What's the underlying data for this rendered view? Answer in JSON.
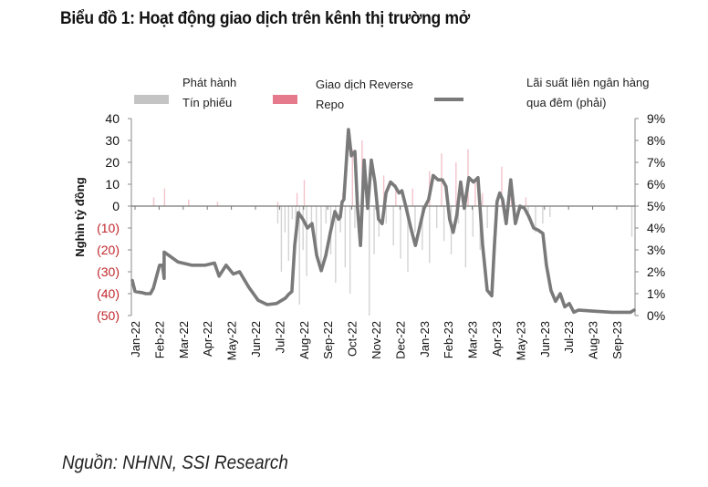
{
  "title": "Biểu đồ 1: Hoạt động giao dịch trên kênh thị trường mở",
  "source": "Nguồn: NHNN, SSI Research",
  "legend": [
    {
      "line1": "Phát hành",
      "line2": "Tín phiếu",
      "color": "#c4c4c4",
      "kind": "bar"
    },
    {
      "line1": "Giao dịch Reverse",
      "line2": "Repo",
      "color": "#e57a8c",
      "kind": "bar"
    },
    {
      "line1": "Lãi suất liên ngân hàng",
      "line2": "qua đêm (phải)",
      "color": "#7a7a7a",
      "kind": "line"
    }
  ],
  "chart_data": {
    "type": "bar+line",
    "title": "Biểu đồ 1: Hoạt động giao dịch trên kênh thị trường mở",
    "ylabel": "Nghìn tỷ đồng",
    "y2label": "",
    "ylim": [
      -50,
      40
    ],
    "y2lim": [
      0,
      9
    ],
    "yticks": [
      "40",
      "30",
      "20",
      "10",
      "0",
      "(10)",
      "(20)",
      "(30)",
      "(40)",
      "(50)"
    ],
    "yticks_values": [
      40,
      30,
      20,
      10,
      0,
      -10,
      -20,
      -30,
      -40,
      -50
    ],
    "y2ticks": [
      "9%",
      "8%",
      "7%",
      "6%",
      "5%",
      "4%",
      "3%",
      "2%",
      "1%",
      "0%"
    ],
    "y2ticks_values": [
      9,
      8,
      7,
      6,
      5,
      4,
      3,
      2,
      1,
      0
    ],
    "negative_tick_color": "#c0282d",
    "categories": [
      "Jan-22",
      "Feb-22",
      "Mar-22",
      "Apr-22",
      "May-22",
      "Jun-22",
      "Jul-22",
      "Aug-22",
      "Sep-22",
      "Oct-22",
      "Nov-22",
      "Dec-22",
      "Jan-23",
      "Feb-23",
      "Mar-23",
      "Apr-23",
      "May-23",
      "Jun-23",
      "Jul-23",
      "Aug-23",
      "Sep-23"
    ],
    "grid": false,
    "legend_position": "top",
    "series": [
      {
        "name": "Lãi suất liên ngân hàng qua đêm (phải)",
        "axis": "right",
        "type": "line",
        "x": [
          -0.15,
          0,
          0.27,
          0.45,
          0.64,
          0.76,
          1.02,
          1.14,
          1.21,
          1.21,
          1.4,
          1.78,
          2.35,
          2.92,
          3.3,
          3.49,
          3.78,
          4.08,
          4.34,
          4.72,
          5.11,
          5.49,
          5.87,
          6.25,
          6.36,
          6.51,
          6.63,
          6.78,
          6.97,
          7.16,
          7.35,
          7.54,
          7.73,
          7.92,
          8.11,
          8.3,
          8.45,
          8.52,
          8.6,
          8.67,
          8.86,
          8.98,
          9.13,
          9.24,
          9.36,
          9.51,
          9.66,
          9.81,
          9.96,
          10.11,
          10.26,
          10.42,
          10.61,
          10.8,
          10.96,
          11.08,
          11.26,
          11.45,
          11.64,
          12.0,
          12.19,
          12.38,
          12.58,
          12.76,
          12.91,
          13.06,
          13.21,
          13.36,
          13.52,
          13.67,
          13.86,
          14.05,
          14.24,
          14.43,
          14.62,
          14.81,
          14.92,
          15.03,
          15.14,
          15.26,
          15.41,
          15.6,
          15.79,
          15.98,
          16.17,
          16.36,
          16.55,
          16.74,
          16.93,
          17.08,
          17.27,
          17.46,
          17.65,
          17.84,
          18.03,
          18.22,
          18.41,
          19.05,
          19.81,
          20.57,
          20.76
        ],
        "values": [
          1.6,
          1.1,
          1.05,
          1.0,
          1.0,
          1.25,
          2.3,
          2.3,
          1.7,
          2.9,
          2.75,
          2.45,
          2.3,
          2.3,
          2.4,
          1.8,
          2.3,
          1.9,
          2.0,
          1.3,
          0.7,
          0.5,
          0.55,
          0.8,
          0.95,
          1.1,
          3.2,
          4.7,
          4.4,
          4.0,
          4.2,
          2.75,
          2.05,
          2.75,
          3.8,
          4.75,
          4.4,
          4.5,
          5.2,
          5.3,
          8.5,
          7.3,
          7.5,
          4.9,
          3.2,
          7.1,
          4.9,
          7.1,
          6.1,
          4.4,
          4.2,
          5.6,
          6.1,
          5.9,
          5.6,
          5.7,
          4.9,
          4.0,
          3.2,
          4.9,
          5.3,
          6.4,
          6.2,
          6.2,
          5.9,
          4.4,
          3.8,
          4.6,
          6.1,
          4.9,
          6.3,
          6.1,
          6.3,
          3.2,
          1.15,
          0.9,
          3.2,
          5.2,
          5.6,
          5.3,
          4.2,
          6.2,
          4.2,
          5.0,
          4.9,
          4.5,
          4.0,
          3.9,
          3.75,
          2.3,
          1.15,
          0.65,
          1.0,
          0.4,
          0.55,
          0.15,
          0.25,
          0.2,
          0.15,
          0.15,
          0.25
        ]
      },
      {
        "name": "Phát hành Tín phiếu",
        "axis": "left",
        "type": "bar",
        "x": [
          5.9,
          6.05,
          6.2,
          6.35,
          6.5,
          6.65,
          6.8,
          6.95,
          7.1,
          7.3,
          7.5,
          7.7,
          7.9,
          8.1,
          8.3,
          8.5,
          8.7,
          8.9,
          9.1,
          9.4,
          9.7,
          9.9,
          10.1,
          10.4,
          10.7,
          11.0,
          11.3,
          11.6,
          11.9,
          12.2,
          12.5,
          12.8,
          13.1,
          13.4,
          13.7,
          14.0,
          14.3,
          14.6,
          16.3,
          16.6,
          16.9,
          17.2,
          20.6
        ],
        "values": [
          -8,
          -30,
          -12,
          -25,
          -6,
          -14,
          -45,
          -20,
          -32,
          -10,
          -18,
          -26,
          -8,
          -22,
          -35,
          -12,
          -28,
          -40,
          -10,
          -15,
          -50,
          -22,
          -14,
          -8,
          -18,
          -24,
          -30,
          -12,
          -20,
          -26,
          -10,
          -16,
          -22,
          -8,
          -28,
          -14,
          -20,
          -10,
          -6,
          -12,
          -8,
          -5,
          -14
        ]
      },
      {
        "name": "Giao dịch Reverse Repo",
        "axis": "left",
        "type": "bar",
        "x": [
          0.75,
          1.2,
          2.2,
          3.4,
          5.9,
          6.7,
          7.0,
          8.6,
          9.0,
          9.4,
          10.3,
          10.8,
          11.5,
          12.2,
          12.7,
          13.3,
          13.8,
          14.1,
          14.4,
          15.2,
          15.6,
          16.2
        ],
        "values": [
          4,
          8,
          3,
          2,
          2,
          6,
          12,
          6,
          26,
          30,
          14,
          10,
          8,
          16,
          24,
          20,
          26,
          12,
          6,
          18,
          10,
          4
        ]
      }
    ]
  }
}
